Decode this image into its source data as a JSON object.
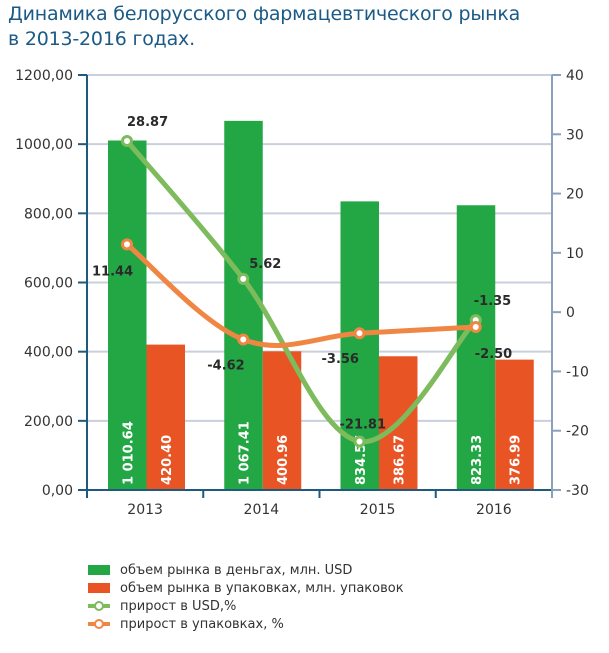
{
  "title": {
    "line1": "Динамика белорусского фармацевтического рынка",
    "line2": "в 2013-2016 годах."
  },
  "colors": {
    "bar_usd": "#22a744",
    "bar_packs": "#e85424",
    "line_usd": "#7dbb5c",
    "line_packs": "#f08644",
    "axis_left": "#1d5a7e",
    "axis_right": "#8aa0bd",
    "grid": "#c9cfdc",
    "text": "#333333"
  },
  "chart_data": {
    "type": "bar",
    "title": "Динамика белорусского фармацевтического рынка в 2013-2016 годах.",
    "categories": [
      "2013",
      "2014",
      "2015",
      "2016"
    ],
    "left_axis": {
      "range": [
        0,
        1200
      ],
      "ticks": [
        0,
        200,
        400,
        600,
        800,
        1000,
        1200
      ],
      "tick_labels": [
        "0,00",
        "200,00",
        "400,00",
        "600,00",
        "800,00",
        "1000,00",
        "1200,00"
      ]
    },
    "right_axis": {
      "range": [
        -30,
        40
      ],
      "ticks": [
        -30,
        -20,
        -10,
        0,
        10,
        20,
        30,
        40
      ],
      "tick_labels": [
        "-30",
        "-20",
        "-10",
        "0",
        "10",
        "20",
        "30",
        "40"
      ]
    },
    "grid": true,
    "legend_position": "bottom-left",
    "series": [
      {
        "name": "объем рынка в деньгах, млн. USD",
        "type": "bar",
        "axis": "left",
        "values": [
          1010.64,
          1067.41,
          834.57,
          823.33
        ],
        "labels": [
          "1 010.64",
          "1 067.41",
          "834.57",
          "823.33"
        ]
      },
      {
        "name": "объем рынка в упаковках, млн. упаковок",
        "type": "bar",
        "axis": "left",
        "values": [
          420.4,
          400.96,
          386.67,
          376.99
        ],
        "labels": [
          "420.40",
          "400.96",
          "386.67",
          "376.99"
        ]
      },
      {
        "name": "прирост в USD,%",
        "type": "line",
        "axis": "right",
        "values": [
          28.87,
          5.62,
          -21.81,
          -1.35
        ],
        "labels": [
          "28.87",
          "5.62",
          "-21.81",
          "-1.35"
        ]
      },
      {
        "name": "прирост в упаковках, %",
        "type": "line",
        "axis": "right",
        "values": [
          11.44,
          -4.62,
          -3.56,
          -2.5
        ],
        "labels": [
          "11.44",
          "-4.62",
          "-3.56",
          "-2.50"
        ]
      }
    ]
  }
}
